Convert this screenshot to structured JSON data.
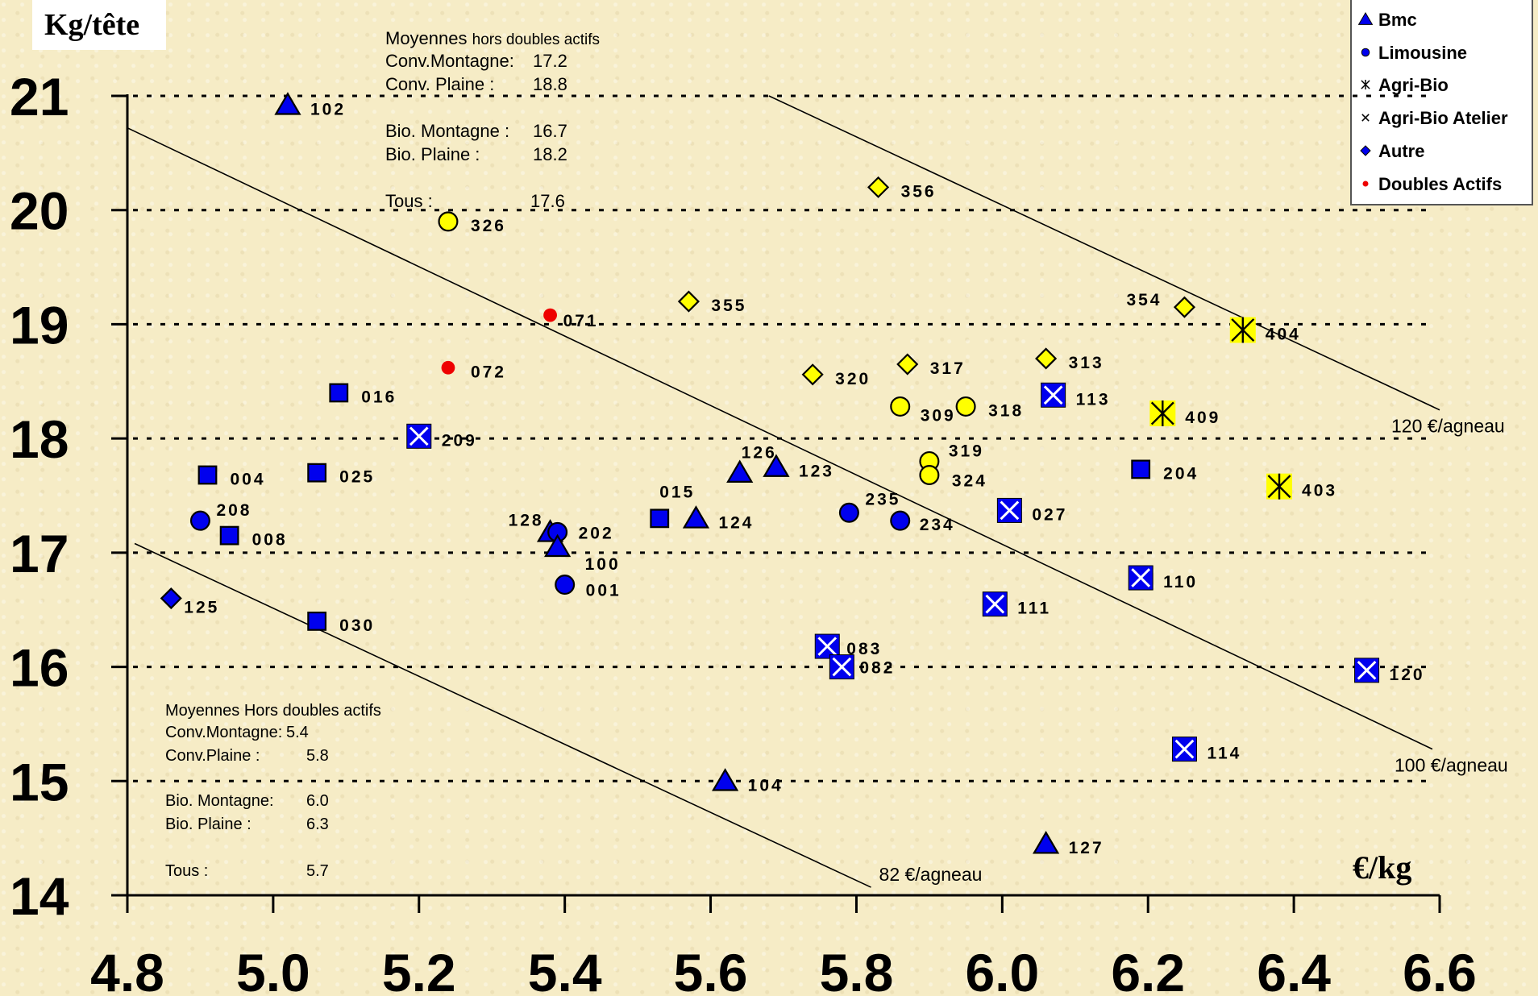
{
  "chart_data": {
    "type": "scatter",
    "ylabel": "Kg/tête",
    "xlabel": "€/kg",
    "xlim": [
      4.8,
      6.6
    ],
    "ylim": [
      14,
      21
    ],
    "x_ticks": [
      "4.8",
      "5.0",
      "5.2",
      "5.4",
      "5.6",
      "5.8",
      "6.0",
      "6.2",
      "6.4",
      "6.6"
    ],
    "y_ticks": [
      "14",
      "15",
      "16",
      "17",
      "18",
      "19",
      "20",
      "21"
    ],
    "grid": "horizontal dotted",
    "legend_position": "top-right",
    "legend": [
      {
        "label": "Bmc",
        "marker": "triangle",
        "color": "#0000ee"
      },
      {
        "label": "Limousine",
        "marker": "circle",
        "color": "#0000ee"
      },
      {
        "label": "Agri-Bio",
        "marker": "asterisk",
        "color": "#000000"
      },
      {
        "label": "Agri-Bio Atelier",
        "marker": "x",
        "color": "#000000"
      },
      {
        "label": "Autre",
        "marker": "diamond",
        "color": "#0000ee"
      },
      {
        "label": "Doubles Actifs",
        "marker": "dot",
        "color": "#ee0000"
      }
    ],
    "points": [
      {
        "id": "102",
        "x": 5.02,
        "y": 20.92,
        "marker": "triangle",
        "color": "#0000ee"
      },
      {
        "id": "326",
        "x": 5.24,
        "y": 19.9,
        "marker": "circle",
        "color": "#ffff00"
      },
      {
        "id": "356",
        "x": 5.83,
        "y": 20.2,
        "marker": "diamond",
        "color": "#ffff00"
      },
      {
        "id": "355",
        "x": 5.57,
        "y": 19.2,
        "marker": "diamond",
        "color": "#ffff00"
      },
      {
        "id": "354",
        "x": 6.25,
        "y": 19.15,
        "marker": "diamond",
        "color": "#ffff00"
      },
      {
        "id": "404",
        "x": 6.33,
        "y": 18.95,
        "marker": "asterisk",
        "color": "#ffff00"
      },
      {
        "id": "071",
        "x": 5.38,
        "y": 19.08,
        "marker": "dot",
        "color": "#ee0000"
      },
      {
        "id": "072",
        "x": 5.24,
        "y": 18.62,
        "marker": "dot",
        "color": "#ee0000"
      },
      {
        "id": "320",
        "x": 5.74,
        "y": 18.56,
        "marker": "diamond",
        "color": "#ffff00"
      },
      {
        "id": "317",
        "x": 5.87,
        "y": 18.65,
        "marker": "diamond",
        "color": "#ffff00"
      },
      {
        "id": "313",
        "x": 6.06,
        "y": 18.7,
        "marker": "diamond",
        "color": "#ffff00"
      },
      {
        "id": "309",
        "x": 5.86,
        "y": 18.28,
        "marker": "circle",
        "color": "#ffff00"
      },
      {
        "id": "318",
        "x": 5.95,
        "y": 18.28,
        "marker": "circle",
        "color": "#ffff00"
      },
      {
        "id": "113",
        "x": 6.07,
        "y": 18.38,
        "marker": "xbox",
        "color": "#0000ee"
      },
      {
        "id": "409",
        "x": 6.22,
        "y": 18.22,
        "marker": "asterisk",
        "color": "#ffff00"
      },
      {
        "id": "016",
        "x": 5.09,
        "y": 18.4,
        "marker": "square",
        "color": "#0000ee"
      },
      {
        "id": "209",
        "x": 5.2,
        "y": 18.02,
        "marker": "xbox",
        "color": "#0000ee"
      },
      {
        "id": "004",
        "x": 4.91,
        "y": 17.68,
        "marker": "square",
        "color": "#0000ee"
      },
      {
        "id": "025",
        "x": 5.06,
        "y": 17.7,
        "marker": "square",
        "color": "#0000ee"
      },
      {
        "id": "208",
        "x": 4.9,
        "y": 17.28,
        "marker": "circle",
        "color": "#0000ee"
      },
      {
        "id": "008",
        "x": 4.94,
        "y": 17.15,
        "marker": "square",
        "color": "#0000ee"
      },
      {
        "id": "126",
        "x": 5.64,
        "y": 17.7,
        "marker": "triangle",
        "color": "#0000ee"
      },
      {
        "id": "123",
        "x": 5.69,
        "y": 17.75,
        "marker": "triangle",
        "color": "#0000ee"
      },
      {
        "id": "319",
        "x": 5.9,
        "y": 17.8,
        "marker": "circle",
        "color": "#ffff00"
      },
      {
        "id": "324",
        "x": 5.9,
        "y": 17.68,
        "marker": "circle",
        "color": "#ffff00"
      },
      {
        "id": "204",
        "x": 6.19,
        "y": 17.73,
        "marker": "square",
        "color": "#0000ee"
      },
      {
        "id": "403",
        "x": 6.38,
        "y": 17.58,
        "marker": "asterisk",
        "color": "#ffff00"
      },
      {
        "id": "015",
        "x": 5.53,
        "y": 17.3,
        "marker": "square",
        "color": "#0000ee"
      },
      {
        "id": "124",
        "x": 5.58,
        "y": 17.3,
        "marker": "triangle",
        "color": "#0000ee"
      },
      {
        "id": "235",
        "x": 5.79,
        "y": 17.35,
        "marker": "circle",
        "color": "#0000ee"
      },
      {
        "id": "234",
        "x": 5.86,
        "y": 17.28,
        "marker": "circle",
        "color": "#0000ee"
      },
      {
        "id": "027",
        "x": 6.01,
        "y": 17.37,
        "marker": "xbox",
        "color": "#0000ee"
      },
      {
        "id": "128",
        "x": 5.38,
        "y": 17.18,
        "marker": "triangle",
        "color": "#0000ee"
      },
      {
        "id": "202",
        "x": 5.39,
        "y": 17.18,
        "marker": "circle",
        "color": "#0000ee"
      },
      {
        "id": "100",
        "x": 5.39,
        "y": 17.05,
        "marker": "triangle",
        "color": "#0000ee"
      },
      {
        "id": "001",
        "x": 5.4,
        "y": 16.72,
        "marker": "circle",
        "color": "#0000ee"
      },
      {
        "id": "125",
        "x": 4.86,
        "y": 16.6,
        "marker": "diamond",
        "color": "#0000ee"
      },
      {
        "id": "030",
        "x": 5.06,
        "y": 16.4,
        "marker": "square",
        "color": "#0000ee"
      },
      {
        "id": "110",
        "x": 6.19,
        "y": 16.78,
        "marker": "xbox",
        "color": "#0000ee"
      },
      {
        "id": "111",
        "x": 5.99,
        "y": 16.55,
        "marker": "xbox",
        "color": "#0000ee"
      },
      {
        "id": "083",
        "x": 5.76,
        "y": 16.18,
        "marker": "xbox",
        "color": "#0000ee"
      },
      {
        "id": "082",
        "x": 5.78,
        "y": 16.0,
        "marker": "xbox",
        "color": "#0000ee"
      },
      {
        "id": "120",
        "x": 6.5,
        "y": 15.97,
        "marker": "xbox",
        "color": "#0000ee"
      },
      {
        "id": "114",
        "x": 6.25,
        "y": 15.28,
        "marker": "xbox",
        "color": "#0000ee"
      },
      {
        "id": "104",
        "x": 5.62,
        "y": 15.0,
        "marker": "triangle",
        "color": "#0000ee"
      },
      {
        "id": "127",
        "x": 6.06,
        "y": 14.45,
        "marker": "triangle",
        "color": "#0000ee"
      }
    ],
    "iso_lines": [
      {
        "label": "120 €/agneau",
        "x1": 5.68,
        "y1": 21.0,
        "x2": 6.6,
        "y2": 18.25
      },
      {
        "label": "100 €/agneau",
        "x1": 4.8,
        "y1": 20.72,
        "x2": 6.59,
        "y2": 15.28
      },
      {
        "label": "82 €/agneau",
        "x1": 4.81,
        "y1": 17.08,
        "x2": 5.82,
        "y2": 14.07
      }
    ],
    "annotations": {
      "top_block": {
        "title": "Moyennes",
        "title_suffix": "hors doubles actifs",
        "rows": [
          {
            "label": "Conv.Montagne:",
            "value": "17.2"
          },
          {
            "label": "Conv. Plaine :",
            "value": "18.8"
          },
          {
            "label": "Bio. Montagne :",
            "value": "16.7"
          },
          {
            "label": "Bio. Plaine :",
            "value": "18.2"
          },
          {
            "label": "Tous :",
            "value": "17.6"
          }
        ]
      },
      "bottom_block": {
        "title": "Moyennes Hors doubles actifs",
        "rows": [
          {
            "label": "Conv.Montagne:",
            "value": "5.4"
          },
          {
            "label": "Conv.Plaine :",
            "value": "5.8"
          },
          {
            "label": "Bio. Montagne:",
            "value": "6.0"
          },
          {
            "label": "Bio. Plaine :",
            "value": "6.3"
          },
          {
            "label": "Tous :",
            "value": "5.7"
          }
        ]
      }
    }
  }
}
